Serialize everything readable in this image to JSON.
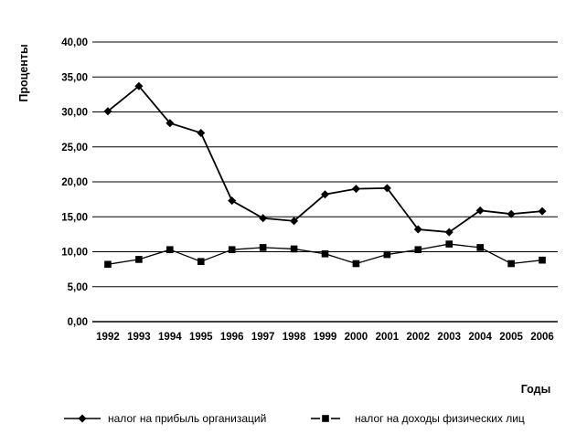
{
  "chart_data": {
    "type": "line",
    "title": "",
    "xlabel": "Годы",
    "ylabel": "Проценты",
    "categories": [
      "1992",
      "1993",
      "1994",
      "1995",
      "1996",
      "1997",
      "1998",
      "1999",
      "2000",
      "2001",
      "2002",
      "2003",
      "2004",
      "2005",
      "2006"
    ],
    "ylim": [
      0,
      40
    ],
    "yticks": [
      "0,00",
      "5,00",
      "10,00",
      "15,00",
      "20,00",
      "25,00",
      "30,00",
      "35,00",
      "40,00"
    ],
    "grid": true,
    "legend_position": "bottom",
    "series": [
      {
        "name": "налог на прибыль организаций",
        "marker": "diamond",
        "line_style": "solid",
        "values": [
          30.1,
          33.7,
          28.4,
          27.0,
          17.3,
          14.8,
          14.4,
          18.2,
          19.0,
          19.1,
          13.2,
          12.8,
          15.9,
          15.4,
          15.8
        ]
      },
      {
        "name": "налог на доходы физических лиц",
        "marker": "square",
        "line_style": "solid",
        "values": [
          8.2,
          8.9,
          10.3,
          8.6,
          10.3,
          10.6,
          10.4,
          9.7,
          8.3,
          9.6,
          10.3,
          11.1,
          10.6,
          8.3,
          8.8
        ]
      }
    ]
  }
}
